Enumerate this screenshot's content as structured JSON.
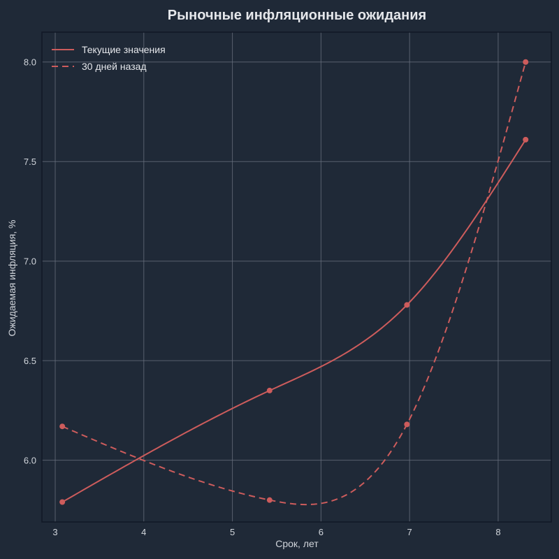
{
  "chart_data": {
    "type": "line",
    "title": "Рыночные инфляционные ожидания",
    "xlabel": "Срок, лет",
    "ylabel": "Ожидаемая инфляция, %",
    "xlim": [
      2.85,
      8.6
    ],
    "ylim": [
      5.69,
      8.15
    ],
    "xticks": [
      3,
      4,
      5,
      6,
      7,
      8
    ],
    "yticks": [
      6.0,
      6.5,
      7.0,
      7.5,
      8.0
    ],
    "xtick_labels": [
      "3",
      "4",
      "5",
      "6",
      "7",
      "8"
    ],
    "ytick_labels": [
      "6.0",
      "6.5",
      "7.0",
      "7.5",
      "8.0"
    ],
    "grid": true,
    "legend_position": "top-left",
    "colors": {
      "series": "#cd5c5c",
      "background": "#1f2937",
      "grid": "#6b7280",
      "text": "#e5e7eb"
    },
    "series": [
      {
        "name": "Текущие значения",
        "style": "solid",
        "x": [
          3.08,
          5.42,
          6.97,
          8.31
        ],
        "y": [
          5.79,
          6.35,
          6.78,
          7.61
        ]
      },
      {
        "name": "30 дней назад",
        "style": "dashed",
        "x": [
          3.08,
          5.42,
          6.97,
          8.31
        ],
        "y": [
          6.17,
          5.8,
          6.18,
          8.0
        ]
      }
    ]
  }
}
